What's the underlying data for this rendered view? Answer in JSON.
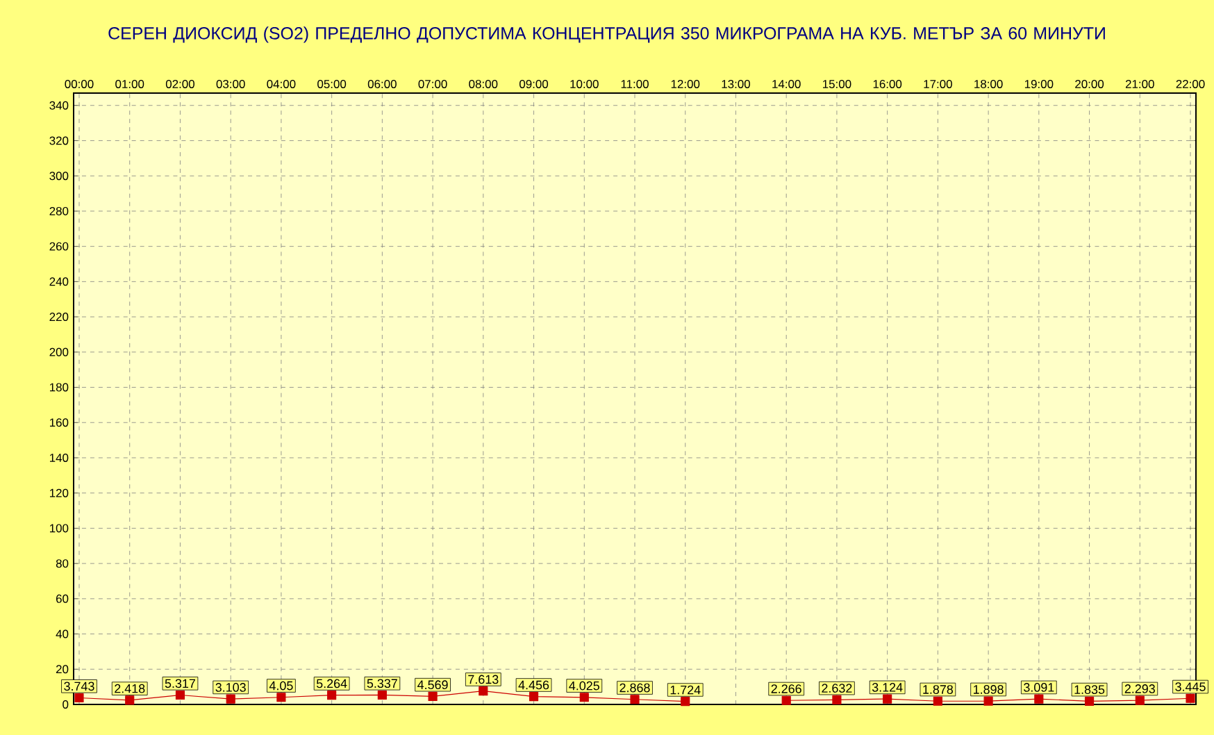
{
  "chart_data": {
    "type": "line",
    "title": "СЕРЕН ДИОКСИД  (SO2)  ПРЕДЕЛНО ДОПУСТИМА КОНЦЕНТРАЦИЯ 350 МИКРОГРАМА  НА КУБ. МЕТЪР ЗА 60 МИНУТИ",
    "categories": [
      "00:00",
      "01:00",
      "02:00",
      "03:00",
      "04:00",
      "05:00",
      "06:00",
      "07:00",
      "08:00",
      "09:00",
      "10:00",
      "11:00",
      "12:00",
      "13:00",
      "14:00",
      "15:00",
      "16:00",
      "17:00",
      "18:00",
      "19:00",
      "20:00",
      "21:00",
      "22:00"
    ],
    "series": [
      {
        "color": "#cc0000",
        "values": [
          3.743,
          2.418,
          5.317,
          3.103,
          4.05,
          5.264,
          5.337,
          4.569,
          7.613,
          4.456,
          4.025,
          2.868,
          1.724,
          null,
          2.266,
          2.632,
          3.124,
          1.878,
          1.898,
          3.091,
          1.835,
          2.293,
          3.445
        ],
        "value_labels": [
          "3.743",
          "2.418",
          "5.317",
          "3.103",
          "4.05",
          "5.264",
          "5.337",
          "4.569",
          "7.613",
          "4.456",
          "4.025",
          "2.868",
          "1.724",
          null,
          "2.266",
          "2.632",
          "3.124",
          "1.878",
          "1.898",
          "3.091",
          "1.835",
          "2.293",
          "3.445"
        ]
      }
    ],
    "ylim": [
      0,
      347
    ],
    "yticks": [
      0,
      20,
      40,
      60,
      80,
      100,
      120,
      140,
      160,
      180,
      200,
      220,
      240,
      260,
      280,
      300,
      320,
      340
    ],
    "grid": true,
    "marker": "square",
    "line_style": "solid"
  }
}
